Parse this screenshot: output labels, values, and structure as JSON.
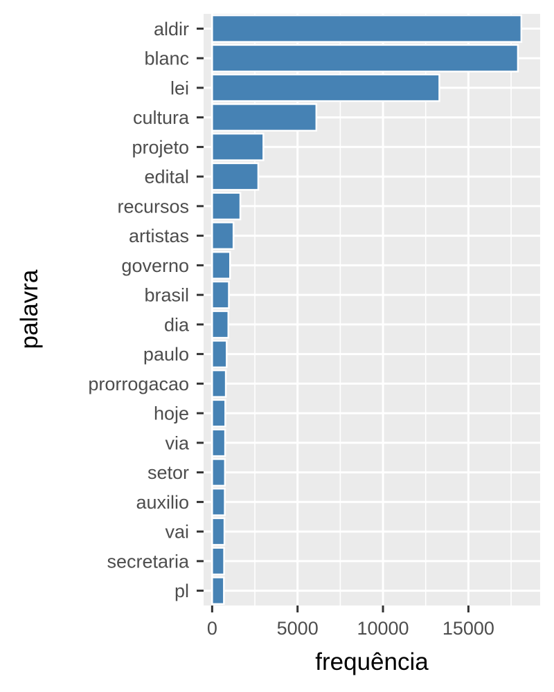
{
  "chart_data": {
    "type": "bar",
    "orientation": "horizontal",
    "categories": [
      "aldir",
      "blanc",
      "lei",
      "cultura",
      "projeto",
      "edital",
      "recursos",
      "artistas",
      "governo",
      "brasil",
      "dia",
      "paulo",
      "prorrogacao",
      "hoje",
      "via",
      "setor",
      "auxilio",
      "vai",
      "secretaria",
      "pl"
    ],
    "values": [
      18100,
      17900,
      13300,
      6100,
      3000,
      2700,
      1650,
      1250,
      1050,
      980,
      950,
      850,
      800,
      770,
      760,
      750,
      740,
      720,
      700,
      690
    ],
    "xlabel": "frequência",
    "ylabel": "palavra",
    "xlim": [
      -500,
      19200
    ],
    "x_ticks": [
      0,
      5000,
      10000,
      15000
    ],
    "grid": true,
    "colors": {
      "bar": "#4682b4",
      "panel": "#ebebeb",
      "grid": "#ffffff",
      "tick": "#333333"
    }
  }
}
